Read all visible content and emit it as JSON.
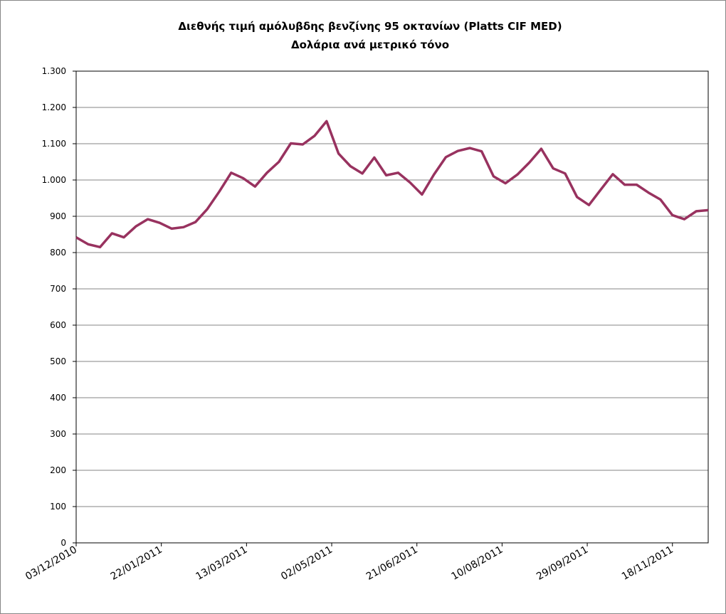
{
  "chart_data": {
    "type": "line",
    "title": "Διεθνής τιμή αμόλυβδης βενζίνης 95 οκτανίων (Platts CIF MED)",
    "subtitle": "Δολάρια ανά μετρικό τόνο",
    "x": [
      "03/12/2010",
      "10/12/2010",
      "17/12/2010",
      "24/12/2010",
      "31/12/2010",
      "07/01/2011",
      "14/01/2011",
      "21/01/2011",
      "28/01/2011",
      "04/02/2011",
      "11/02/2011",
      "18/02/2011",
      "25/02/2011",
      "04/03/2011",
      "11/03/2011",
      "18/03/2011",
      "25/03/2011",
      "01/04/2011",
      "08/04/2011",
      "15/04/2011",
      "22/04/2011",
      "29/04/2011",
      "06/05/2011",
      "13/05/2011",
      "20/05/2011",
      "27/05/2011",
      "03/06/2011",
      "10/06/2011",
      "17/06/2011",
      "24/06/2011",
      "01/07/2011",
      "08/07/2011",
      "15/07/2011",
      "22/07/2011",
      "29/07/2011",
      "05/08/2011",
      "12/08/2011",
      "19/08/2011",
      "26/08/2011",
      "02/09/2011",
      "09/09/2011",
      "16/09/2011",
      "23/09/2011",
      "30/09/2011",
      "07/10/2011",
      "14/10/2011",
      "21/10/2011",
      "28/10/2011",
      "04/11/2011",
      "11/11/2011",
      "18/11/2011",
      "25/11/2011",
      "02/12/2011",
      "09/12/2011"
    ],
    "series": [
      {
        "color": "#98325f",
        "values": [
          842,
          823,
          815,
          853,
          842,
          872,
          892,
          882,
          866,
          870,
          884,
          920,
          968,
          1020,
          1005,
          982,
          1020,
          1050,
          1101,
          1098,
          1122,
          1162,
          1073,
          1038,
          1018,
          1062,
          1013,
          1020,
          993,
          960,
          1015,
          1063,
          1080,
          1088,
          1079,
          1010,
          991,
          1015,
          1048,
          1086,
          1032,
          1018,
          953,
          931,
          974,
          1016,
          987,
          987,
          965,
          946,
          903,
          892,
          914,
          917
        ]
      }
    ],
    "xlim": [
      "03/12/2010",
      "09/12/2011"
    ],
    "xticks": [
      "03/12/2010",
      "22/01/2011",
      "13/03/2011",
      "02/05/2011",
      "21/06/2011",
      "10/08/2011",
      "29/09/2011",
      "18/11/2011"
    ],
    "ylim": [
      0,
      1300
    ],
    "yticks": [
      0,
      100,
      200,
      300,
      400,
      500,
      600,
      700,
      800,
      900,
      {
        "value": 1000,
        "label": "1.000"
      },
      {
        "value": 1100,
        "label": "1.100"
      },
      {
        "value": 1200,
        "label": "1.200"
      },
      {
        "value": 1300,
        "label": "1.300"
      }
    ],
    "grid": true
  }
}
